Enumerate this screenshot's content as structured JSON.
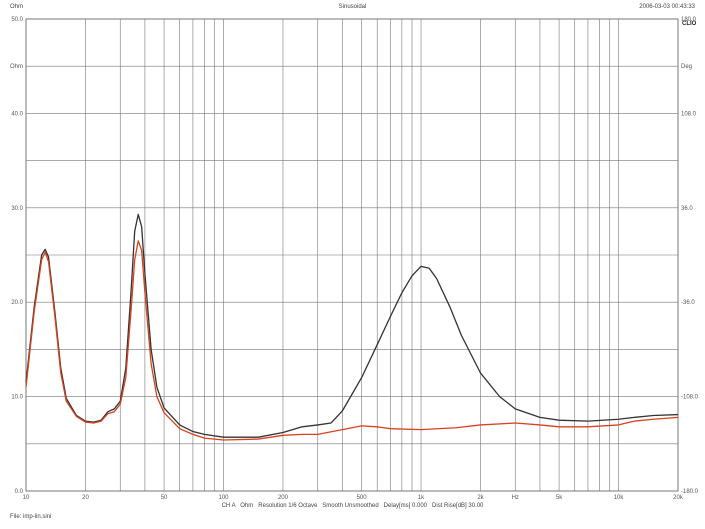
{
  "header": {
    "left_label": "Ohm",
    "center_title": "Sinusoidal",
    "timestamp": "2006-03-03 00:43:33"
  },
  "logo": "CLIO",
  "footer": {
    "settings": "CH A   Ohm   Resolution 1/6 Octave   Smooth Unsmoothed   Delay[ms] 0.000   Dist Rise[dB] 30.00",
    "file": "File: imp-lin.sini"
  },
  "chart_data": {
    "type": "line",
    "x_scale": "log",
    "xlim": [
      10,
      20000
    ],
    "x_ticks": [
      {
        "value": 10,
        "label": "10"
      },
      {
        "value": 20,
        "label": "20"
      },
      {
        "value": 50,
        "label": "50"
      },
      {
        "value": 100,
        "label": "100"
      },
      {
        "value": 200,
        "label": "200"
      },
      {
        "value": 500,
        "label": "500"
      },
      {
        "value": 1000,
        "label": "1k"
      },
      {
        "value": 2000,
        "label": "2k"
      },
      {
        "value": 3000,
        "label": "Hz"
      },
      {
        "value": 5000,
        "label": "5k"
      },
      {
        "value": 10000,
        "label": "10k"
      },
      {
        "value": 20000,
        "label": "20k"
      }
    ],
    "ylim_left": [
      0,
      50
    ],
    "y_ticks_left": [
      {
        "value": 50,
        "label": "50.0"
      },
      {
        "value": 45,
        "label": "Ohm"
      },
      {
        "value": 40,
        "label": "40.0"
      },
      {
        "value": 30,
        "label": "30.0"
      },
      {
        "value": 20,
        "label": "20.0"
      },
      {
        "value": 10,
        "label": "10.0"
      },
      {
        "value": 0,
        "label": "0.0"
      }
    ],
    "ylim_right": [
      -180,
      180
    ],
    "y_ticks_right": [
      {
        "value": 180,
        "label": "180.0"
      },
      {
        "value": 144,
        "label": "Deg"
      },
      {
        "value": 108,
        "label": "108.0"
      },
      {
        "value": 36,
        "label": "36.0"
      },
      {
        "value": -36,
        "label": "-36.0"
      },
      {
        "value": -108,
        "label": "-108.0"
      },
      {
        "value": -180,
        "label": "-180.0"
      }
    ],
    "grid": true,
    "series": [
      {
        "color": "#333333",
        "points": [
          [
            10,
            11.5
          ],
          [
            11,
            19.5
          ],
          [
            12,
            25.0
          ],
          [
            12.5,
            25.6
          ],
          [
            13,
            24.8
          ],
          [
            14,
            19.0
          ],
          [
            15,
            13.0
          ],
          [
            16,
            9.8
          ],
          [
            18,
            8.0
          ],
          [
            20,
            7.4
          ],
          [
            22,
            7.3
          ],
          [
            24,
            7.5
          ],
          [
            26,
            8.4
          ],
          [
            28,
            8.7
          ],
          [
            30,
            9.5
          ],
          [
            32,
            13.0
          ],
          [
            34,
            21.0
          ],
          [
            35.5,
            27.5
          ],
          [
            37,
            29.3
          ],
          [
            38.5,
            28.0
          ],
          [
            40,
            23.0
          ],
          [
            43,
            15.0
          ],
          [
            46,
            11.0
          ],
          [
            50,
            8.8
          ],
          [
            60,
            7.0
          ],
          [
            70,
            6.3
          ],
          [
            80,
            6.0
          ],
          [
            100,
            5.7
          ],
          [
            150,
            5.7
          ],
          [
            200,
            6.2
          ],
          [
            250,
            6.8
          ],
          [
            300,
            7.0
          ],
          [
            350,
            7.2
          ],
          [
            400,
            8.5
          ],
          [
            500,
            12.0
          ],
          [
            600,
            15.5
          ],
          [
            700,
            18.5
          ],
          [
            800,
            21.0
          ],
          [
            900,
            22.8
          ],
          [
            1000,
            23.8
          ],
          [
            1100,
            23.6
          ],
          [
            1200,
            22.5
          ],
          [
            1400,
            19.5
          ],
          [
            1600,
            16.5
          ],
          [
            2000,
            12.5
          ],
          [
            2500,
            10.0
          ],
          [
            3000,
            8.7
          ],
          [
            4000,
            7.8
          ],
          [
            5000,
            7.5
          ],
          [
            7000,
            7.4
          ],
          [
            10000,
            7.6
          ],
          [
            12000,
            7.8
          ],
          [
            15000,
            8.0
          ],
          [
            20000,
            8.1
          ]
        ]
      },
      {
        "color": "#d9411e",
        "points": [
          [
            10,
            11.0
          ],
          [
            11,
            19.0
          ],
          [
            12,
            24.5
          ],
          [
            12.5,
            25.3
          ],
          [
            13,
            24.3
          ],
          [
            14,
            18.5
          ],
          [
            15,
            12.5
          ],
          [
            16,
            9.5
          ],
          [
            18,
            7.9
          ],
          [
            20,
            7.3
          ],
          [
            22,
            7.2
          ],
          [
            24,
            7.4
          ],
          [
            26,
            8.2
          ],
          [
            28,
            8.4
          ],
          [
            30,
            9.2
          ],
          [
            32,
            12.0
          ],
          [
            34,
            19.0
          ],
          [
            35.5,
            24.5
          ],
          [
            37,
            26.5
          ],
          [
            38.5,
            25.5
          ],
          [
            40,
            21.0
          ],
          [
            43,
            13.5
          ],
          [
            46,
            10.0
          ],
          [
            50,
            8.3
          ],
          [
            60,
            6.6
          ],
          [
            70,
            6.0
          ],
          [
            80,
            5.6
          ],
          [
            100,
            5.4
          ],
          [
            150,
            5.5
          ],
          [
            200,
            5.9
          ],
          [
            250,
            6.0
          ],
          [
            300,
            6.0
          ],
          [
            400,
            6.5
          ],
          [
            500,
            6.9
          ],
          [
            600,
            6.8
          ],
          [
            700,
            6.6
          ],
          [
            1000,
            6.5
          ],
          [
            1500,
            6.7
          ],
          [
            2000,
            7.0
          ],
          [
            3000,
            7.2
          ],
          [
            4000,
            7.0
          ],
          [
            5000,
            6.8
          ],
          [
            7000,
            6.8
          ],
          [
            10000,
            7.0
          ],
          [
            12000,
            7.4
          ],
          [
            15000,
            7.6
          ],
          [
            20000,
            7.8
          ]
        ]
      }
    ]
  }
}
